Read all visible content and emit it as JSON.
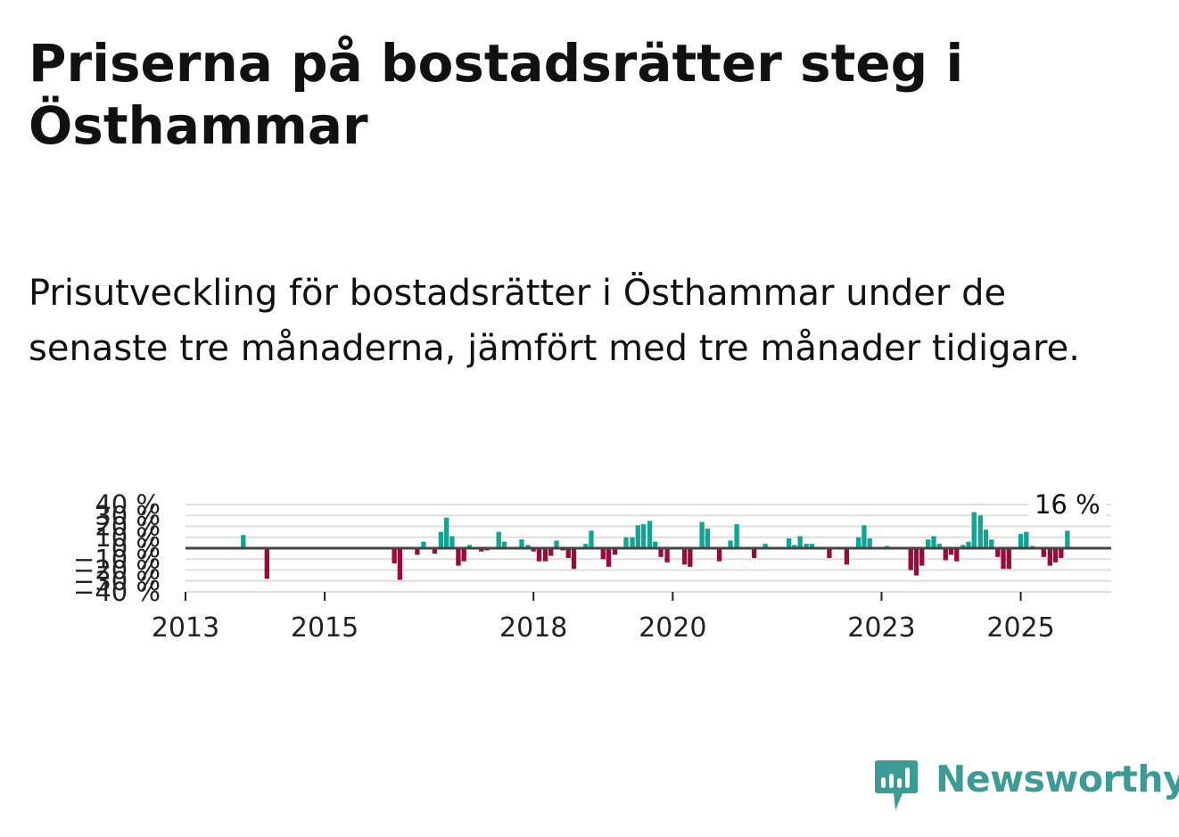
{
  "title": "Priserna på bostadsrätter steg i Östhammar",
  "subtitle": "Prisutveckling för bostadsrätter i Östhammar under de senaste tre månaderna, jämfört med tre månader tidigare.",
  "brand": {
    "name": "Newsworthy",
    "color": "#3d9b96"
  },
  "colors": {
    "positive": "#12a391",
    "negative": "#9b0a3d",
    "zero_line": "#444444",
    "grid": "#dddddd"
  },
  "chart_data": {
    "type": "bar",
    "title": "Priserna på bostadsrätter steg i Östhammar",
    "xlabel": "",
    "ylabel": "",
    "ylim": [
      -40,
      40
    ],
    "x_start": 2013,
    "x_end": 2026.3,
    "y_ticks": [
      {
        "value": 40,
        "label": "40 %"
      },
      {
        "value": 30,
        "label": "30 %"
      },
      {
        "value": 20,
        "label": "20 %"
      },
      {
        "value": 10,
        "label": "10 %"
      },
      {
        "value": 0,
        "label": "0 %"
      },
      {
        "value": -10,
        "label": "−10 %"
      },
      {
        "value": -20,
        "label": "−20 %"
      },
      {
        "value": -30,
        "label": "−30 %"
      },
      {
        "value": -40,
        "label": "−40 %"
      }
    ],
    "x_ticks": [
      {
        "value": 2013,
        "label": "2013"
      },
      {
        "value": 2015,
        "label": "2015"
      },
      {
        "value": 2018,
        "label": "2018"
      },
      {
        "value": 2020,
        "label": "2020"
      },
      {
        "value": 2023,
        "label": "2023"
      },
      {
        "value": 2025,
        "label": "2025"
      }
    ],
    "last_value_label": "16 %",
    "series": [
      {
        "name": "Prisutveckling",
        "points": [
          [
            2013.83,
            12
          ],
          [
            2014.17,
            -28
          ],
          [
            2016.0,
            -14
          ],
          [
            2016.08,
            -29
          ],
          [
            2016.33,
            -6
          ],
          [
            2016.42,
            6
          ],
          [
            2016.58,
            -5
          ],
          [
            2016.67,
            15
          ],
          [
            2016.75,
            28
          ],
          [
            2016.83,
            11
          ],
          [
            2016.92,
            -16
          ],
          [
            2017.0,
            -12
          ],
          [
            2017.08,
            3
          ],
          [
            2017.25,
            -3
          ],
          [
            2017.33,
            -2
          ],
          [
            2017.42,
            1
          ],
          [
            2017.5,
            15
          ],
          [
            2017.58,
            6
          ],
          [
            2017.75,
            1
          ],
          [
            2017.83,
            8
          ],
          [
            2017.92,
            3
          ],
          [
            2018.0,
            -3
          ],
          [
            2018.08,
            -12
          ],
          [
            2018.17,
            -12
          ],
          [
            2018.25,
            -7
          ],
          [
            2018.33,
            7
          ],
          [
            2018.42,
            -2
          ],
          [
            2018.5,
            -9
          ],
          [
            2018.58,
            -19
          ],
          [
            2018.67,
            1
          ],
          [
            2018.75,
            4
          ],
          [
            2018.83,
            16
          ],
          [
            2018.92,
            1
          ],
          [
            2019.0,
            -10
          ],
          [
            2019.08,
            -17
          ],
          [
            2019.17,
            -6
          ],
          [
            2019.25,
            1
          ],
          [
            2019.33,
            10
          ],
          [
            2019.42,
            10
          ],
          [
            2019.5,
            21
          ],
          [
            2019.58,
            22
          ],
          [
            2019.67,
            25
          ],
          [
            2019.75,
            6
          ],
          [
            2019.83,
            -8
          ],
          [
            2019.92,
            -13
          ],
          [
            2020.08,
            1
          ],
          [
            2020.17,
            -15
          ],
          [
            2020.25,
            -17
          ],
          [
            2020.33,
            1
          ],
          [
            2020.42,
            24
          ],
          [
            2020.5,
            18
          ],
          [
            2020.58,
            1
          ],
          [
            2020.67,
            -12
          ],
          [
            2020.83,
            7
          ],
          [
            2020.92,
            22
          ],
          [
            2021.0,
            1
          ],
          [
            2021.08,
            1
          ],
          [
            2021.17,
            -9
          ],
          [
            2021.33,
            4
          ],
          [
            2021.5,
            1
          ],
          [
            2021.58,
            1
          ],
          [
            2021.67,
            9
          ],
          [
            2021.75,
            3
          ],
          [
            2021.83,
            11
          ],
          [
            2021.92,
            4
          ],
          [
            2022.0,
            4
          ],
          [
            2022.08,
            1
          ],
          [
            2022.17,
            1
          ],
          [
            2022.25,
            -9
          ],
          [
            2022.5,
            -15
          ],
          [
            2022.58,
            1
          ],
          [
            2022.67,
            10
          ],
          [
            2022.75,
            21
          ],
          [
            2022.83,
            9
          ],
          [
            2022.92,
            1
          ],
          [
            2023.08,
            2
          ],
          [
            2023.25,
            1
          ],
          [
            2023.33,
            1
          ],
          [
            2023.42,
            -20
          ],
          [
            2023.5,
            -25
          ],
          [
            2023.58,
            -16
          ],
          [
            2023.67,
            8
          ],
          [
            2023.75,
            11
          ],
          [
            2023.83,
            4
          ],
          [
            2023.92,
            -11
          ],
          [
            2024.0,
            -6
          ],
          [
            2024.08,
            -12
          ],
          [
            2024.17,
            3
          ],
          [
            2024.25,
            6
          ],
          [
            2024.33,
            33
          ],
          [
            2024.42,
            30
          ],
          [
            2024.5,
            17
          ],
          [
            2024.58,
            8
          ],
          [
            2024.67,
            -8
          ],
          [
            2024.75,
            -19
          ],
          [
            2024.83,
            -19
          ],
          [
            2024.92,
            1
          ],
          [
            2025.0,
            13
          ],
          [
            2025.08,
            15
          ],
          [
            2025.17,
            2
          ],
          [
            2025.25,
            1
          ],
          [
            2025.33,
            -8
          ],
          [
            2025.42,
            -16
          ],
          [
            2025.5,
            -13
          ],
          [
            2025.58,
            -9
          ],
          [
            2025.67,
            16
          ]
        ]
      }
    ]
  }
}
